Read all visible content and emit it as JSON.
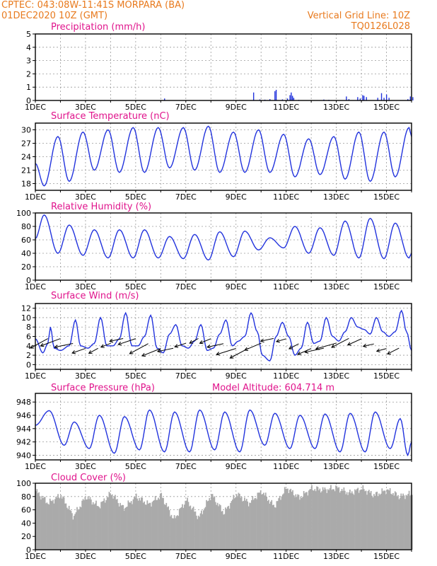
{
  "header": {
    "station_line": "CPTEC:   043:08W-11:41S   MORPARA (BA)",
    "date_line": "01DEC2020 10Z (GMT)",
    "grid_note": "Vertical Grid Line: 10Z",
    "model_id": "TQ0126L028"
  },
  "colors": {
    "header": "#e87a1e",
    "title": "#e0148c",
    "line": "#2233dd",
    "cloud": "#aaaaaa"
  },
  "chart_data": [
    {
      "type": "bar",
      "title": "Precipitation (mm/h)",
      "x_ticks": [
        "1DEC",
        "3DEC",
        "5DEC",
        "7DEC",
        "9DEC",
        "11DEC",
        "13DEC",
        "15DEC"
      ],
      "x_range_days": [
        0,
        15
      ],
      "ylim": [
        0,
        5
      ],
      "y_ticks": [
        0,
        1,
        2,
        3,
        4,
        5
      ],
      "grid": true,
      "bars": [
        {
          "day": 5.15,
          "value": 0.15
        },
        {
          "day": 8.7,
          "value": 0.6
        },
        {
          "day": 8.95,
          "value": 0.08
        },
        {
          "day": 9.15,
          "value": 0.06
        },
        {
          "day": 9.35,
          "value": 0.1
        },
        {
          "day": 9.55,
          "value": 0.7
        },
        {
          "day": 9.6,
          "value": 0.8
        },
        {
          "day": 9.85,
          "value": 0.08
        },
        {
          "day": 10.05,
          "value": 0.15
        },
        {
          "day": 10.15,
          "value": 0.4
        },
        {
          "day": 10.2,
          "value": 0.6
        },
        {
          "day": 10.25,
          "value": 0.35
        },
        {
          "day": 10.3,
          "value": 0.2
        },
        {
          "day": 10.5,
          "value": 0.05
        },
        {
          "day": 11.5,
          "value": 0.07
        },
        {
          "day": 11.7,
          "value": 0.05
        },
        {
          "day": 12.4,
          "value": 0.3
        },
        {
          "day": 12.5,
          "value": 0.1
        },
        {
          "day": 12.85,
          "value": 0.25
        },
        {
          "day": 12.95,
          "value": 0.15
        },
        {
          "day": 13.05,
          "value": 0.4
        },
        {
          "day": 13.1,
          "value": 0.35
        },
        {
          "day": 13.2,
          "value": 0.25
        },
        {
          "day": 13.65,
          "value": 0.2
        },
        {
          "day": 13.8,
          "value": 0.55
        },
        {
          "day": 13.9,
          "value": 0.2
        },
        {
          "day": 14.0,
          "value": 0.45
        },
        {
          "day": 14.1,
          "value": 0.2
        },
        {
          "day": 14.85,
          "value": 0.1
        },
        {
          "day": 14.95,
          "value": 0.3
        },
        {
          "day": 15.05,
          "value": 0.25
        }
      ]
    },
    {
      "type": "line",
      "title": "Surface Temperature (nC)",
      "x_ticks": [
        "1DEC",
        "3DEC",
        "5DEC",
        "7DEC",
        "9DEC",
        "11DEC",
        "13DEC",
        "15DEC"
      ],
      "x_range_days": [
        0,
        15
      ],
      "ylim": [
        16.5,
        31.5
      ],
      "y_ticks": [
        18,
        21,
        24,
        27,
        30
      ],
      "grid": true,
      "mins": [
        [
          0.35,
          17.5
        ],
        [
          1.35,
          18.5
        ],
        [
          2.35,
          21.0
        ],
        [
          3.35,
          20.5
        ],
        [
          4.35,
          20.5
        ],
        [
          5.35,
          21.5
        ],
        [
          6.35,
          21.0
        ],
        [
          7.35,
          20.5
        ],
        [
          8.35,
          20.5
        ],
        [
          9.35,
          20.5
        ],
        [
          10.35,
          19.5
        ],
        [
          11.35,
          20.0
        ],
        [
          12.35,
          19.0
        ],
        [
          13.35,
          18.5
        ],
        [
          14.35,
          19.5
        ]
      ],
      "maxs": [
        [
          0.9,
          28.5
        ],
        [
          1.9,
          29.5
        ],
        [
          2.9,
          30.0
        ],
        [
          3.9,
          30.5
        ],
        [
          4.9,
          30.5
        ],
        [
          5.9,
          30.5
        ],
        [
          6.9,
          30.8
        ],
        [
          7.9,
          29.5
        ],
        [
          8.9,
          30.0
        ],
        [
          9.9,
          29.0
        ],
        [
          10.9,
          28.0
        ],
        [
          11.9,
          28.5
        ],
        [
          12.9,
          29.5
        ],
        [
          13.9,
          29.5
        ],
        [
          14.9,
          30.5
        ]
      ],
      "start": [
        0,
        22.5
      ],
      "end": [
        15,
        28.5
      ]
    },
    {
      "type": "line",
      "title": "Relative Humidity (%)",
      "x_ticks": [
        "1DEC",
        "3DEC",
        "5DEC",
        "7DEC",
        "9DEC",
        "11DEC",
        "13DEC",
        "15DEC"
      ],
      "x_range_days": [
        0,
        15
      ],
      "ylim": [
        0,
        100
      ],
      "y_ticks": [
        0,
        20,
        40,
        60,
        80,
        100
      ],
      "grid": true,
      "mins": [
        [
          0.9,
          40
        ],
        [
          1.9,
          37
        ],
        [
          2.9,
          33
        ],
        [
          3.9,
          33
        ],
        [
          4.9,
          33
        ],
        [
          5.9,
          32
        ],
        [
          6.9,
          30
        ],
        [
          7.9,
          35
        ],
        [
          8.9,
          45
        ],
        [
          9.9,
          48
        ],
        [
          10.9,
          40
        ],
        [
          11.9,
          37
        ],
        [
          12.9,
          33
        ],
        [
          13.9,
          32
        ],
        [
          14.9,
          33
        ]
      ],
      "maxs": [
        [
          0.35,
          97
        ],
        [
          1.35,
          82
        ],
        [
          2.35,
          75
        ],
        [
          3.35,
          75
        ],
        [
          4.35,
          75
        ],
        [
          5.35,
          65
        ],
        [
          6.35,
          68
        ],
        [
          7.35,
          72
        ],
        [
          8.35,
          73
        ],
        [
          9.35,
          63
        ],
        [
          10.35,
          80
        ],
        [
          11.35,
          78
        ],
        [
          12.35,
          88
        ],
        [
          13.35,
          92
        ],
        [
          14.35,
          85
        ]
      ],
      "start": [
        0,
        62
      ],
      "end": [
        15,
        40
      ]
    },
    {
      "type": "line",
      "title": "Surface Wind (m/s)",
      "x_ticks": [
        "1DEC",
        "3DEC",
        "5DEC",
        "7DEC",
        "9DEC",
        "11DEC",
        "13DEC",
        "15DEC"
      ],
      "x_range_days": [
        0,
        15
      ],
      "ylim": [
        -1,
        13
      ],
      "y_ticks": [
        0,
        2,
        4,
        6,
        8,
        10,
        12
      ],
      "grid": true,
      "series": [
        [
          0,
          5.5
        ],
        [
          0.3,
          2.5
        ],
        [
          0.5,
          4.5
        ],
        [
          0.6,
          8.0
        ],
        [
          0.75,
          3.5
        ],
        [
          1.0,
          3.0
        ],
        [
          1.35,
          4.0
        ],
        [
          1.6,
          9.5
        ],
        [
          1.8,
          4.0
        ],
        [
          2.1,
          3.5
        ],
        [
          2.35,
          4.5
        ],
        [
          2.6,
          10.0
        ],
        [
          2.85,
          4.0
        ],
        [
          3.1,
          4.0
        ],
        [
          3.35,
          5.5
        ],
        [
          3.6,
          11.0
        ],
        [
          3.85,
          4.0
        ],
        [
          4.1,
          4.0
        ],
        [
          4.35,
          6.0
        ],
        [
          4.6,
          10.5
        ],
        [
          4.85,
          3.5
        ],
        [
          5.1,
          2.5
        ],
        [
          5.35,
          6.5
        ],
        [
          5.6,
          8.5
        ],
        [
          5.85,
          4.0
        ],
        [
          6.1,
          3.5
        ],
        [
          6.35,
          5.0
        ],
        [
          6.6,
          8.5
        ],
        [
          6.85,
          3.0
        ],
        [
          7.1,
          3.5
        ],
        [
          7.35,
          6.5
        ],
        [
          7.6,
          9.5
        ],
        [
          7.85,
          4.0
        ],
        [
          8.1,
          5.0
        ],
        [
          8.35,
          6.0
        ],
        [
          8.6,
          11.0
        ],
        [
          8.85,
          7.0
        ],
        [
          9.05,
          2.0
        ],
        [
          9.35,
          0.8
        ],
        [
          9.6,
          6.0
        ],
        [
          9.85,
          9.0
        ],
        [
          10.1,
          6.0
        ],
        [
          10.35,
          2.0
        ],
        [
          10.6,
          3.5
        ],
        [
          10.85,
          9.0
        ],
        [
          11.1,
          4.5
        ],
        [
          11.35,
          5.0
        ],
        [
          11.6,
          10.0
        ],
        [
          11.85,
          6.0
        ],
        [
          12.1,
          5.0
        ],
        [
          12.35,
          7.0
        ],
        [
          12.6,
          10.0
        ],
        [
          12.85,
          8.0
        ],
        [
          13.1,
          7.5
        ],
        [
          13.35,
          6.5
        ],
        [
          13.6,
          10.0
        ],
        [
          13.85,
          7.0
        ],
        [
          14.1,
          6.0
        ],
        [
          14.35,
          7.0
        ],
        [
          14.6,
          11.5
        ],
        [
          14.8,
          7.0
        ],
        [
          15.0,
          3.0
        ]
      ],
      "arrows_note": "wind barbs pointing toward the west-southwest"
    },
    {
      "type": "line",
      "title": "Surface Pressure (hPa)",
      "annotation": "Model Altitude: 604.714 m",
      "x_ticks": [
        "1DEC",
        "3DEC",
        "5DEC",
        "7DEC",
        "9DEC",
        "11DEC",
        "13DEC",
        "15DEC"
      ],
      "x_range_days": [
        0,
        15
      ],
      "ylim": [
        939.3,
        949.3
      ],
      "y_ticks": [
        940,
        942,
        944,
        946,
        948
      ],
      "grid": true,
      "maxs": [
        [
          0.55,
          946.7
        ],
        [
          1.55,
          945.0
        ],
        [
          2.55,
          946.0
        ],
        [
          3.55,
          945.8
        ],
        [
          4.55,
          946.8
        ],
        [
          5.55,
          946.5
        ],
        [
          6.55,
          946.8
        ],
        [
          7.55,
          946.5
        ],
        [
          8.55,
          946.8
        ],
        [
          9.55,
          946.3
        ],
        [
          10.55,
          946.0
        ],
        [
          11.55,
          946.2
        ],
        [
          12.55,
          946.3
        ],
        [
          13.55,
          946.5
        ],
        [
          14.55,
          945.5
        ]
      ],
      "mins": [
        [
          1.15,
          941.5
        ],
        [
          2.15,
          941.0
        ],
        [
          3.15,
          940.3
        ],
        [
          4.15,
          940.8
        ],
        [
          5.15,
          940.5
        ],
        [
          6.15,
          940.5
        ],
        [
          7.15,
          940.8
        ],
        [
          8.15,
          940.5
        ],
        [
          9.15,
          941.5
        ],
        [
          10.15,
          941.0
        ],
        [
          11.15,
          941.0
        ],
        [
          12.15,
          940.5
        ],
        [
          13.15,
          940.5
        ],
        [
          14.15,
          941.0
        ],
        [
          14.85,
          940.0
        ]
      ],
      "start": [
        0,
        944.5
      ],
      "end": [
        15,
        942.0
      ]
    },
    {
      "type": "bar",
      "title": "Cloud Cover (%)",
      "x_ticks": [
        "1DEC",
        "3DEC",
        "5DEC",
        "7DEC",
        "9DEC",
        "11DEC",
        "13DEC",
        "15DEC"
      ],
      "x_range_days": [
        0,
        15
      ],
      "ylim": [
        0,
        100
      ],
      "y_ticks": [
        0,
        20,
        40,
        60,
        80,
        100
      ],
      "grid": true,
      "profile": [
        [
          0,
          88
        ],
        [
          0.5,
          70
        ],
        [
          1.0,
          82
        ],
        [
          1.5,
          50
        ],
        [
          2.0,
          80
        ],
        [
          2.5,
          65
        ],
        [
          3.0,
          85
        ],
        [
          3.5,
          62
        ],
        [
          4.0,
          80
        ],
        [
          4.5,
          68
        ],
        [
          5.0,
          82
        ],
        [
          5.5,
          45
        ],
        [
          6.0,
          75
        ],
        [
          6.5,
          48
        ],
        [
          7.0,
          83
        ],
        [
          7.5,
          55
        ],
        [
          8.0,
          84
        ],
        [
          8.5,
          70
        ],
        [
          9.0,
          88
        ],
        [
          9.5,
          65
        ],
        [
          10.0,
          93
        ],
        [
          10.5,
          78
        ],
        [
          11.0,
          92
        ],
        [
          11.5,
          90
        ],
        [
          12.0,
          93
        ],
        [
          12.5,
          85
        ],
        [
          13.0,
          92
        ],
        [
          13.5,
          82
        ],
        [
          14.0,
          90
        ],
        [
          14.5,
          80
        ],
        [
          15.0,
          84
        ]
      ]
    }
  ]
}
